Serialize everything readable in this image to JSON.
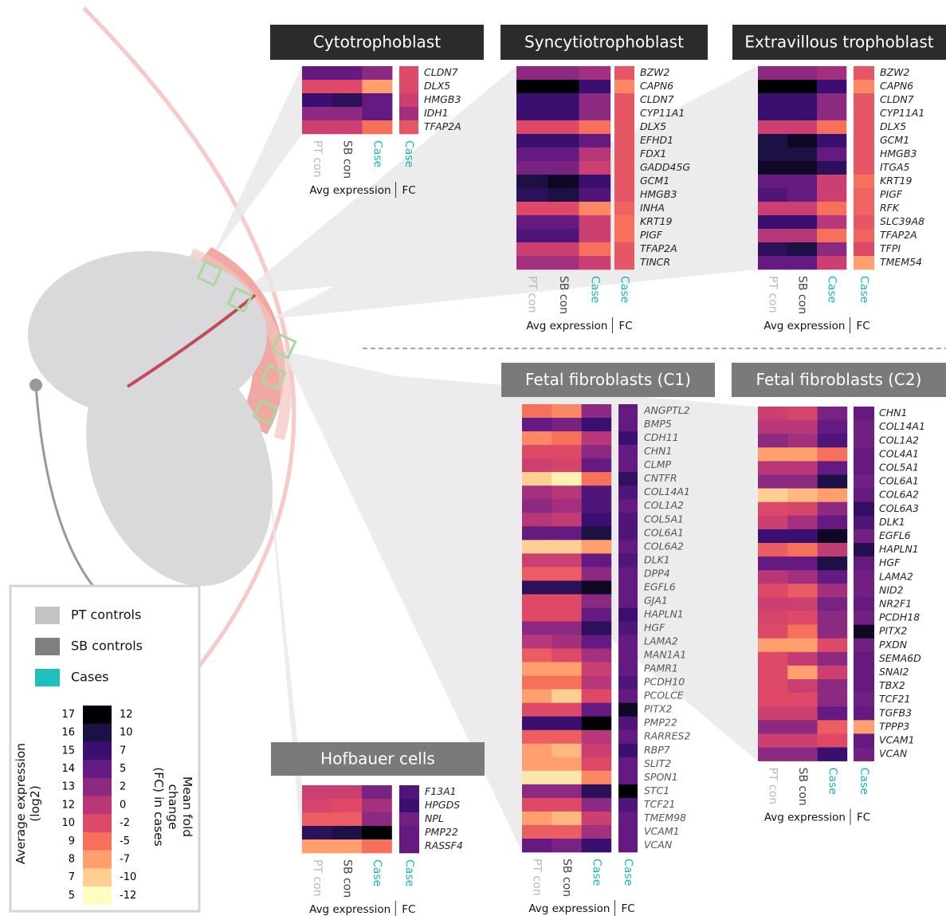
{
  "chart_data": [
    {
      "type": "heatmap",
      "title": "Cytotrophoblast",
      "header_color": "#2b2b2b",
      "label_color": "#222222",
      "rows": [
        "CLDN7",
        "DLX5",
        "HMGB3",
        "IDH1",
        "TFAP2A"
      ],
      "columns": [
        "PT con",
        "SB con",
        "Case"
      ],
      "fc_column": "Case",
      "x_label": "Avg expression",
      "fc_label": "FC",
      "values": [
        [
          14,
          14,
          13
        ],
        [
          10,
          10,
          8
        ],
        [
          15,
          15.5,
          14
        ],
        [
          13,
          13,
          14
        ],
        [
          11,
          11,
          9
        ]
      ],
      "fc": [
        -2,
        -2,
        -1,
        1,
        -3
      ]
    },
    {
      "type": "heatmap",
      "title": "Syncytiotrophoblast",
      "header_color": "#2b2b2b",
      "label_color": "#222222",
      "rows": [
        "BZW2",
        "CAPN6",
        "CLDN7",
        "CYP11A1",
        "DLX5",
        "EFHD1",
        "FDX1",
        "GADD45G",
        "GCM1",
        "HMGB3",
        "INHA",
        "KRT19",
        "PIGF",
        "TFAP2A",
        "TINCR"
      ],
      "columns": [
        "PT con",
        "SB con",
        "Case"
      ],
      "fc_column": "Case",
      "x_label": "Avg expression",
      "fc_label": "FC",
      "values": [
        [
          13,
          13,
          12.5
        ],
        [
          17,
          17,
          15
        ],
        [
          15,
          15,
          13
        ],
        [
          15,
          15,
          13
        ],
        [
          10,
          10,
          9
        ],
        [
          15,
          15,
          14
        ],
        [
          14,
          14,
          12
        ],
        [
          13.5,
          13.5,
          11
        ],
        [
          16,
          16.5,
          15
        ],
        [
          15.5,
          16,
          14.5
        ],
        [
          10,
          10,
          8.5
        ],
        [
          14,
          14,
          11
        ],
        [
          14.5,
          14.5,
          11
        ],
        [
          11,
          11,
          9
        ],
        [
          12.5,
          12.5,
          11
        ]
      ],
      "fc": [
        -3,
        -6,
        -3,
        -3,
        -3,
        -3,
        -3,
        -3,
        -3,
        -3,
        -4,
        -5,
        -5,
        -3,
        -3
      ]
    },
    {
      "type": "heatmap",
      "title": "Extravillous trophoblast",
      "header_color": "#2b2b2b",
      "label_color": "#222222",
      "rows": [
        "BZW2",
        "CAPN6",
        "CLDN7",
        "CYP11A1",
        "DLX5",
        "GCM1",
        "HMGB3",
        "ITGA5",
        "KRT19",
        "PIGF",
        "RFK",
        "SLC39A8",
        "TFAP2A",
        "TFPI",
        "TMEM54"
      ],
      "columns": [
        "PT con",
        "SB con",
        "Case"
      ],
      "fc_column": "Case",
      "x_label": "Avg expression",
      "fc_label": "FC",
      "values": [
        [
          13,
          13,
          12.5
        ],
        [
          17,
          17,
          15
        ],
        [
          15,
          15,
          13
        ],
        [
          15,
          15,
          13
        ],
        [
          11,
          11,
          9
        ],
        [
          16,
          16.5,
          15
        ],
        [
          16,
          16,
          14
        ],
        [
          16.5,
          16.5,
          15.5
        ],
        [
          14,
          14,
          11
        ],
        [
          14.5,
          14,
          11
        ],
        [
          11,
          11,
          9
        ],
        [
          15,
          15,
          12
        ],
        [
          12,
          12,
          9
        ],
        [
          15.5,
          16,
          13
        ],
        [
          14,
          14,
          11
        ]
      ],
      "fc": [
        -3,
        -6,
        -3,
        -3,
        -3,
        -3,
        -3,
        -3,
        -5,
        -4,
        -4,
        -3,
        -4,
        -2,
        -7
      ]
    },
    {
      "type": "heatmap",
      "title": "Fetal fibroblasts (C1)",
      "header_color": "#7a7a7a",
      "label_color": "#555555",
      "rows": [
        "ANGPTL2",
        "BMP5",
        "CDH11",
        "CHN1",
        "CLMP",
        "CNTFR",
        "COL14A1",
        "COL1A2",
        "COL5A1",
        "COL6A1",
        "COL6A2",
        "DLK1",
        "DPP4",
        "EGFL6",
        "GJA1",
        "HAPLN1",
        "HGF",
        "LAMA2",
        "MAN1A1",
        "PAMR1",
        "PCDH10",
        "PCOLCE",
        "PITX2",
        "PMP22",
        "RARRES2",
        "RBP7",
        "SLIT2",
        "SPON1",
        "STC1",
        "TCF21",
        "TMEM98",
        "VCAM1",
        "VCAN"
      ],
      "columns": [
        "PT con",
        "SB con",
        "Case"
      ],
      "fc_column": "Case",
      "x_label": "Avg expression",
      "fc_label": "FC",
      "values": [
        [
          9,
          8.5,
          13
        ],
        [
          14,
          13.5,
          15
        ],
        [
          8.5,
          9,
          12
        ],
        [
          10,
          10,
          13
        ],
        [
          11,
          10.5,
          14
        ],
        [
          7,
          5.5,
          9
        ],
        [
          12.5,
          12,
          14.5
        ],
        [
          13,
          12.5,
          14.5
        ],
        [
          12,
          11.5,
          15
        ],
        [
          14,
          14,
          16
        ],
        [
          7,
          7,
          8
        ],
        [
          11,
          11,
          14
        ],
        [
          9.5,
          9.5,
          13
        ],
        [
          15.5,
          15.5,
          16.5
        ],
        [
          10,
          10,
          13
        ],
        [
          10,
          10,
          14
        ],
        [
          13,
          13,
          15.5
        ],
        [
          12,
          12.5,
          14
        ],
        [
          9.5,
          10,
          12.5
        ],
        [
          8,
          8,
          11
        ],
        [
          9,
          9,
          12
        ],
        [
          8,
          7,
          10
        ],
        [
          10,
          10,
          14
        ],
        [
          15,
          15,
          17
        ],
        [
          9.5,
          9.5,
          12
        ],
        [
          8,
          7.5,
          11
        ],
        [
          8,
          8,
          10
        ],
        [
          6,
          6,
          8.5
        ],
        [
          13,
          13,
          15.5
        ],
        [
          10,
          10,
          13
        ],
        [
          8,
          7.5,
          11
        ],
        [
          9.5,
          9.5,
          12.5
        ],
        [
          14,
          13.5,
          15
        ]
      ],
      "fc": [
        5,
        5,
        7,
        5,
        5,
        8,
        6,
        5,
        6,
        6,
        5,
        6,
        5,
        5,
        5,
        7,
        6,
        5,
        5,
        5,
        6,
        5,
        11,
        6,
        5,
        7,
        5,
        5,
        12,
        6,
        5,
        5,
        5
      ]
    },
    {
      "type": "heatmap",
      "title": "Fetal fibroblasts (C2)",
      "header_color": "#7a7a7a",
      "label_color": "#222222",
      "rows": [
        "CHN1",
        "COL14A1",
        "COL1A2",
        "COL4A1",
        "COL5A1",
        "COL6A1",
        "COL6A2",
        "COL6A3",
        "DLK1",
        "EGFL6",
        "HAPLN1",
        "HGF",
        "LAMA2",
        "NID2",
        "NR2F1",
        "PCDH18",
        "PITX2",
        "PXDN",
        "SEMA6D",
        "SNAI2",
        "TBX2",
        "TCF21",
        "TGFB3",
        "TPPP3",
        "VCAM1",
        "VCAN"
      ],
      "columns": [
        "PT con",
        "SB con",
        "Case"
      ],
      "fc_column": "Case",
      "x_label": "Avg expression",
      "fc_label": "FC",
      "values": [
        [
          11,
          10.5,
          13.5
        ],
        [
          12,
          12,
          14
        ],
        [
          13,
          12.5,
          14.5
        ],
        [
          8,
          8,
          9
        ],
        [
          12,
          12,
          14
        ],
        [
          13,
          13,
          16
        ],
        [
          7,
          7.5,
          8
        ],
        [
          10,
          10.5,
          13
        ],
        [
          11,
          12.5,
          14
        ],
        [
          15,
          15,
          16.5
        ],
        [
          9.5,
          9,
          11.5
        ],
        [
          14,
          14,
          16
        ],
        [
          12,
          12.5,
          14
        ],
        [
          10,
          9.5,
          12.5
        ],
        [
          11,
          11,
          13.5
        ],
        [
          10.5,
          10,
          13
        ],
        [
          10,
          9,
          13
        ],
        [
          8,
          8,
          10
        ],
        [
          10,
          11.5,
          13
        ],
        [
          10,
          8,
          11
        ],
        [
          10,
          11,
          13
        ],
        [
          10,
          10,
          13
        ],
        [
          11,
          11,
          14
        ],
        [
          13,
          13,
          9.5
        ],
        [
          11,
          11,
          10
        ],
        [
          13,
          13,
          15
        ]
      ],
      "fc": [
        5,
        4,
        4,
        5,
        5,
        4,
        5,
        8,
        6,
        4,
        9,
        5,
        4,
        4,
        5,
        4,
        11,
        4,
        5,
        5,
        5,
        4,
        5,
        -7,
        5,
        4
      ]
    },
    {
      "type": "heatmap",
      "title": "Hofbauer cells",
      "header_color": "#7a7a7a",
      "label_color": "#222222",
      "rows": [
        "F13A1",
        "HPGDS",
        "NPL",
        "PMP22",
        "RASSF4"
      ],
      "columns": [
        "PT con",
        "SB con",
        "Case"
      ],
      "fc_column": "Case",
      "x_label": "Avg expression",
      "fc_label": "FC",
      "values": [
        [
          11,
          11,
          13.5
        ],
        [
          10.5,
          10,
          12.5
        ],
        [
          9.5,
          9.5,
          13
        ],
        [
          15.5,
          16,
          17
        ],
        [
          8,
          8,
          9
        ]
      ],
      "fc": [
        6,
        7,
        4,
        5,
        5
      ]
    }
  ],
  "column_colors": [
    "#b8b8b8",
    "#444444",
    "#1bb5b5"
  ],
  "legend": {
    "items": [
      {
        "label": "PT controls",
        "color": "#c3c3c3"
      },
      {
        "label": "SB controls",
        "color": "#7f7f7f"
      },
      {
        "label": "Cases",
        "color": "#1dbfbf"
      }
    ],
    "expression_title": "Average expression\n(log2)",
    "fc_title": "Mean fold\nchange\n(FC) in cases",
    "expression_ticks": [
      17,
      16,
      15,
      14,
      13,
      12,
      10,
      9,
      8,
      7,
      5
    ],
    "fc_ticks": [
      12,
      10,
      7,
      5,
      2,
      0,
      -2,
      -5,
      -7,
      -10,
      -12
    ],
    "colors": [
      "#000004",
      "#1c1044",
      "#3b0f70",
      "#641a80",
      "#8c2981",
      "#b73779",
      "#de4968",
      "#f7705c",
      "#fe9f6d",
      "#fecf92",
      "#fcfdbf"
    ]
  }
}
